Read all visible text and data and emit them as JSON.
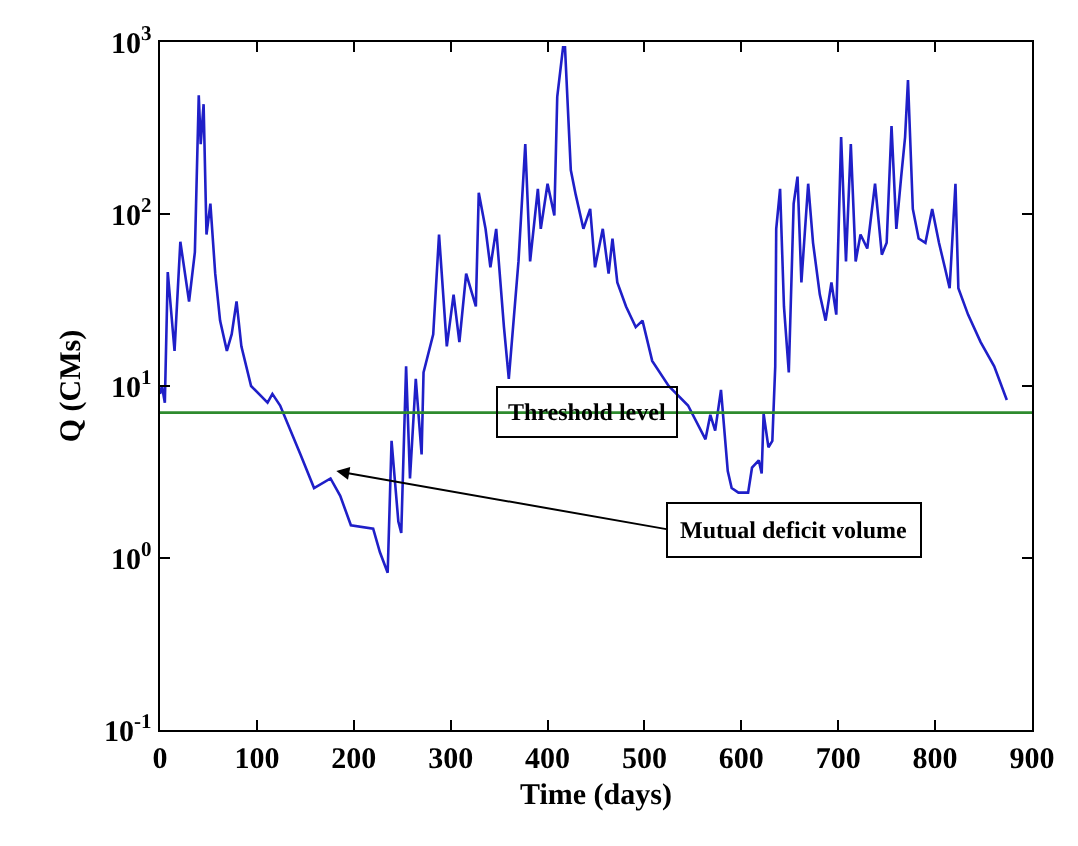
{
  "chart_data": {
    "type": "line",
    "xlabel": "Time (days)",
    "ylabel": "Q (CMs)",
    "log": "y",
    "xlim": [
      0,
      900
    ],
    "xticks": [
      0,
      100,
      200,
      300,
      400,
      500,
      600,
      700,
      800,
      900
    ],
    "ylim": [
      0.1,
      1000
    ],
    "yticks": [
      {
        "value": 0.1,
        "label": "10$^{-1}$"
      },
      {
        "value": 1,
        "label": "10$^{0}$"
      },
      {
        "value": 10,
        "label": "10$^{1}$"
      },
      {
        "value": 100,
        "label": "10$^{2}$"
      },
      {
        "value": 1000,
        "label": "10$^{3}$"
      }
    ],
    "grid": false,
    "marker": "none",
    "line_style": "solid",
    "series": [
      {
        "color": "#1f1fc8",
        "x": [
          0,
          2,
          5,
          8,
          15,
          21,
          30,
          36,
          40,
          42,
          45,
          48,
          52,
          57,
          62,
          69,
          74,
          79,
          84,
          94,
          111,
          116,
          124,
          145,
          159,
          176,
          186,
          197,
          220,
          227,
          235,
          239,
          246,
          249,
          254,
          258,
          264,
          270,
          272,
          282,
          288,
          296,
          303,
          309,
          316,
          326,
          329,
          336,
          341,
          347,
          355,
          360,
          370,
          377,
          382,
          390,
          393,
          400,
          407,
          410,
          416,
          418,
          424,
          429,
          437,
          444,
          449,
          457,
          463,
          467,
          472,
          481,
          491,
          498,
          508,
          525,
          545,
          563,
          568,
          573,
          579,
          586,
          590,
          597,
          607,
          611,
          618,
          621,
          623,
          628,
          632,
          635,
          636,
          640,
          644,
          649,
          654,
          658,
          662,
          669,
          674,
          681,
          687,
          693,
          698,
          703,
          708,
          713,
          718,
          723,
          730,
          738,
          745,
          750,
          755,
          760,
          765,
          769,
          772,
          777,
          783,
          790,
          797,
          804,
          810,
          815,
          821,
          824,
          834,
          847,
          861,
          874
        ],
        "values": [
          9,
          10,
          8,
          46,
          16,
          69,
          31,
          60,
          490,
          255,
          435,
          76,
          115,
          45,
          24,
          16,
          20,
          31,
          17,
          10,
          8,
          9,
          7.7,
          4,
          2.55,
          2.9,
          2.3,
          1.55,
          1.48,
          1.08,
          0.82,
          4.8,
          1.63,
          1.4,
          13,
          2.9,
          11,
          4,
          12,
          20,
          76,
          17,
          34,
          18,
          45,
          29,
          133,
          82,
          49,
          82,
          22,
          11,
          53,
          255,
          53,
          140,
          82,
          150,
          98,
          480,
          930,
          930,
          180,
          130,
          82,
          107,
          49,
          82,
          45,
          72,
          40,
          29,
          22,
          24,
          14,
          10,
          7.7,
          4.9,
          6.8,
          5.5,
          9.5,
          3.2,
          2.55,
          2.4,
          2.4,
          3.35,
          3.7,
          3.1,
          6.9,
          4.4,
          4.8,
          13,
          82,
          140,
          29,
          12,
          115,
          165,
          40,
          150,
          68,
          34,
          24,
          40,
          26,
          280,
          53,
          255,
          53,
          76,
          63,
          150,
          58,
          68,
          325,
          82,
          165,
          280,
          600,
          107,
          72,
          68,
          107,
          68,
          49,
          37,
          150,
          37,
          26,
          18,
          13,
          8.3
        ]
      }
    ],
    "ref_lines": [
      {
        "axis": "y",
        "value": 7,
        "label": "Threshold level",
        "color": "#2e8b2e"
      }
    ],
    "annotations": [
      {
        "text": "Mutual deficit volume",
        "x": 182,
        "y": 3.2
      }
    ]
  }
}
